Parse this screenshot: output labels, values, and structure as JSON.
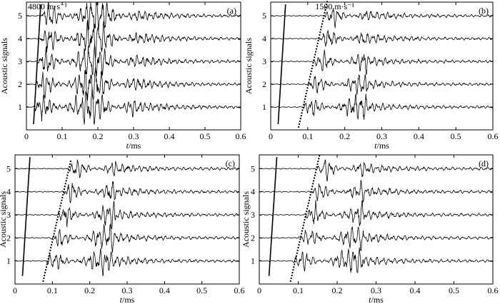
{
  "chart_data": [
    {
      "type": "line",
      "panel_label": "(a)",
      "xlabel_italic": "t",
      "xlabel_rest": "/ms",
      "ylabel": "Acoustic signals",
      "xlim": [
        0,
        0.6
      ],
      "ylim": [
        0,
        5.6
      ],
      "xticks": [
        "0",
        "0.1",
        "0.2",
        "0.3",
        "0.4",
        "0.5",
        "0.6"
      ],
      "yticks": [
        "1",
        "2",
        "3",
        "4",
        "5"
      ],
      "grid": false,
      "annotations": [
        "4800 m·s⁻¹"
      ],
      "series": [
        {
          "baseline": 1,
          "onset_ms": 0.02,
          "end_ms": 0.3
        },
        {
          "baseline": 2,
          "onset_ms": 0.025,
          "end_ms": 0.3
        },
        {
          "baseline": 3,
          "onset_ms": 0.03,
          "end_ms": 0.3
        },
        {
          "baseline": 4,
          "onset_ms": 0.035,
          "end_ms": 0.3
        },
        {
          "baseline": 5,
          "onset_ms": 0.04,
          "end_ms": 0.3
        }
      ],
      "reference_lines": [
        {
          "style": "solid",
          "x": [
            0.02,
            0.04
          ],
          "y": [
            0.25,
            5.5
          ]
        }
      ]
    },
    {
      "type": "line",
      "panel_label": "(b)",
      "xlabel_italic": "t",
      "xlabel_rest": "/ms",
      "ylabel": "Acoustic signals",
      "xlim": [
        0,
        0.6
      ],
      "ylim": [
        0,
        5.6
      ],
      "xticks": [
        "0",
        "0.1",
        "0.2",
        "0.3",
        "0.4",
        "0.5",
        "0.6"
      ],
      "yticks": [
        "1",
        "2",
        "3",
        "4",
        "5"
      ],
      "grid": false,
      "annotations": [
        "1500 m·s⁻¹"
      ],
      "series": [
        {
          "baseline": 1,
          "onset_ms": 0.085,
          "end_ms": 0.26
        },
        {
          "baseline": 2,
          "onset_ms": 0.1,
          "end_ms": 0.26
        },
        {
          "baseline": 3,
          "onset_ms": 0.115,
          "end_ms": 0.26
        },
        {
          "baseline": 4,
          "onset_ms": 0.13,
          "end_ms": 0.26
        },
        {
          "baseline": 5,
          "onset_ms": 0.145,
          "end_ms": 0.26
        }
      ],
      "reference_lines": [
        {
          "style": "solid",
          "x": [
            0.02,
            0.04
          ],
          "y": [
            0.25,
            5.5
          ]
        },
        {
          "style": "dotted",
          "x": [
            0.075,
            0.155
          ],
          "y": [
            0.1,
            5.8
          ]
        }
      ]
    },
    {
      "type": "line",
      "panel_label": "(c)",
      "xlabel_italic": "t",
      "xlabel_rest": "/ms",
      "ylabel": "Acoustic signals",
      "xlim": [
        0,
        0.6
      ],
      "ylim": [
        0,
        5.6
      ],
      "xticks": [
        "0",
        "0.1",
        "0.2",
        "0.3",
        "0.4",
        "0.5",
        "0.6"
      ],
      "yticks": [
        "1",
        "2",
        "3",
        "4",
        "5"
      ],
      "grid": false,
      "annotations": [],
      "series": [
        {
          "baseline": 1,
          "onset_ms": 0.08,
          "end_ms": 0.27
        },
        {
          "baseline": 2,
          "onset_ms": 0.095,
          "end_ms": 0.27
        },
        {
          "baseline": 3,
          "onset_ms": 0.11,
          "end_ms": 0.27
        },
        {
          "baseline": 4,
          "onset_ms": 0.125,
          "end_ms": 0.27
        },
        {
          "baseline": 5,
          "onset_ms": 0.14,
          "end_ms": 0.27
        }
      ],
      "reference_lines": [
        {
          "style": "solid",
          "x": [
            0.02,
            0.04
          ],
          "y": [
            0.35,
            5.5
          ]
        },
        {
          "style": "dotted",
          "x": [
            0.075,
            0.15
          ],
          "y": [
            0.1,
            5.4
          ]
        }
      ]
    },
    {
      "type": "line",
      "panel_label": "(d)",
      "xlabel_italic": "t",
      "xlabel_rest": "/ms",
      "ylabel": "Acoustic signals",
      "xlim": [
        0,
        0.6
      ],
      "ylim": [
        0,
        5.6
      ],
      "xticks": [
        "0",
        "0.1",
        "0.2",
        "0.3",
        "0.4",
        "0.5",
        "0.6"
      ],
      "yticks": [
        "1",
        "2",
        "3",
        "4",
        "5"
      ],
      "grid": false,
      "annotations": [],
      "series": [
        {
          "baseline": 1,
          "onset_ms": 0.085,
          "end_ms": 0.27
        },
        {
          "baseline": 2,
          "onset_ms": 0.1,
          "end_ms": 0.27
        },
        {
          "baseline": 3,
          "onset_ms": 0.115,
          "end_ms": 0.27
        },
        {
          "baseline": 4,
          "onset_ms": 0.13,
          "end_ms": 0.27
        },
        {
          "baseline": 5,
          "onset_ms": 0.145,
          "end_ms": 0.27
        }
      ],
      "reference_lines": [
        {
          "style": "solid",
          "x": [
            0.025,
            0.045
          ],
          "y": [
            0.35,
            5.5
          ]
        },
        {
          "style": "dotted",
          "x": [
            0.08,
            0.155
          ],
          "y": [
            0.1,
            5.6
          ]
        }
      ]
    }
  ]
}
